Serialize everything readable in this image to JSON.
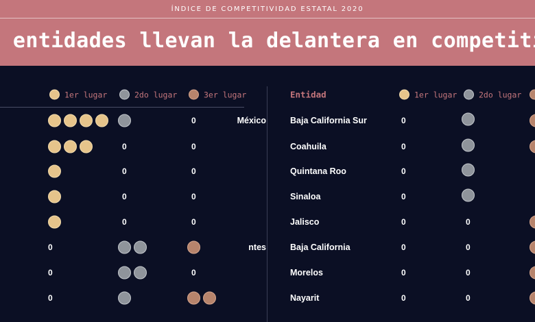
{
  "header": {
    "kicker": "ÍNDICE DE COMPETITIVIDAD ESTATAL 2020",
    "headline": "e entidades llevan la delantera en competitivid"
  },
  "left_table": {
    "headers": {
      "first": "1er lugar",
      "second": "2do lugar",
      "third": "3er lugar"
    },
    "rows": [
      {
        "name": "México",
        "first": 4,
        "second": 1,
        "third": 0,
        "first_label": "",
        "second_label": "",
        "third_label": "0"
      },
      {
        "name": "",
        "first": 3,
        "second": 0,
        "third": 0,
        "first_label": "",
        "second_label": "0",
        "third_label": "0"
      },
      {
        "name": "",
        "first": 1,
        "second": 0,
        "third": 0,
        "first_label": "",
        "second_label": "0",
        "third_label": "0"
      },
      {
        "name": "",
        "first": 1,
        "second": 0,
        "third": 0,
        "first_label": "",
        "second_label": "0",
        "third_label": "0"
      },
      {
        "name": "",
        "first": 1,
        "second": 0,
        "third": 0,
        "first_label": "",
        "second_label": "0",
        "third_label": "0"
      },
      {
        "name": "ntes",
        "first": 0,
        "second": 2,
        "third": 1,
        "first_label": "0",
        "second_label": "",
        "third_label": ""
      },
      {
        "name": "",
        "first": 0,
        "second": 2,
        "third": 0,
        "first_label": "0",
        "second_label": "",
        "third_label": "0"
      },
      {
        "name": "",
        "first": 0,
        "second": 1,
        "third": 2,
        "first_label": "0",
        "second_label": "",
        "third_label": ""
      }
    ]
  },
  "right_table": {
    "headers": {
      "entity": "Entidad",
      "first": "1er lugar",
      "second": "2do lugar"
    },
    "rows": [
      {
        "name": "Baja California Sur",
        "first": 0,
        "second": 1,
        "third": 1,
        "first_label": "0",
        "second_label": ""
      },
      {
        "name": "Coahuila",
        "first": 0,
        "second": 1,
        "third": 1,
        "first_label": "0",
        "second_label": ""
      },
      {
        "name": "Quintana Roo",
        "first": 0,
        "second": 1,
        "third": 0,
        "first_label": "0",
        "second_label": ""
      },
      {
        "name": "Sinaloa",
        "first": 0,
        "second": 1,
        "third": 0,
        "first_label": "0",
        "second_label": ""
      },
      {
        "name": "Jalisco",
        "first": 0,
        "second": 0,
        "third": 1,
        "first_label": "0",
        "second_label": "0"
      },
      {
        "name": "Baja California",
        "first": 0,
        "second": 0,
        "third": 1,
        "first_label": "0",
        "second_label": "0"
      },
      {
        "name": "Morelos",
        "first": 0,
        "second": 0,
        "third": 1,
        "first_label": "0",
        "second_label": "0"
      },
      {
        "name": "Nayarit",
        "first": 0,
        "second": 0,
        "third": 1,
        "first_label": "0",
        "second_label": "0"
      }
    ]
  },
  "colors": {
    "background": "#0b0f24",
    "banner": "#c4767c",
    "accent_text": "#c4767c",
    "gold": "#e6c48b",
    "silver": "#8f949b",
    "bronze": "#b7846c"
  },
  "icons": {
    "first": "gold-medal-icon",
    "second": "silver-medal-icon",
    "third": "bronze-medal-icon"
  }
}
